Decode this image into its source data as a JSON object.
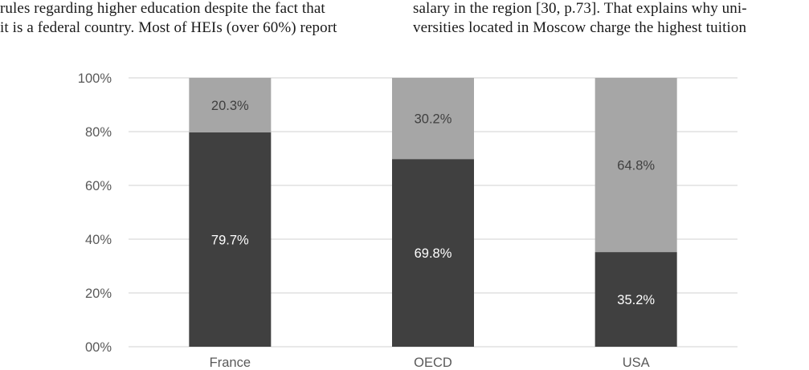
{
  "body_text": {
    "left_lines": [
      "rules regarding higher education despite the fact that",
      "it is a federal country. Most of HEIs (over 60%) report"
    ],
    "right_lines": [
      "salary in the region [30, p.73]. That explains why uni-",
      "versities located in Moscow charge the highest tuition"
    ]
  },
  "chart_data": {
    "type": "bar",
    "stacked": true,
    "categories": [
      "France",
      "OECD",
      "USA"
    ],
    "series": [
      {
        "values": [
          79.7,
          69.8,
          35.2
        ],
        "labels": [
          "79.7%",
          "69.8%",
          "35.2%"
        ],
        "color": "#404040",
        "label_color": "#ffffff"
      },
      {
        "values": [
          20.3,
          30.2,
          64.8
        ],
        "labels": [
          "20.3%",
          "30.2%",
          "64.8%"
        ],
        "color": "#a6a6a6",
        "label_color": "#404040"
      }
    ],
    "yticks": [
      "00%",
      "20%",
      "40%",
      "60%",
      "80%",
      "100%"
    ],
    "ylim": [
      0,
      100
    ],
    "grid": true,
    "legend": "none",
    "title": "",
    "xlabel": "",
    "ylabel": ""
  },
  "colors": {
    "grid": "#d9d9d9",
    "tick_text": "#595959"
  }
}
